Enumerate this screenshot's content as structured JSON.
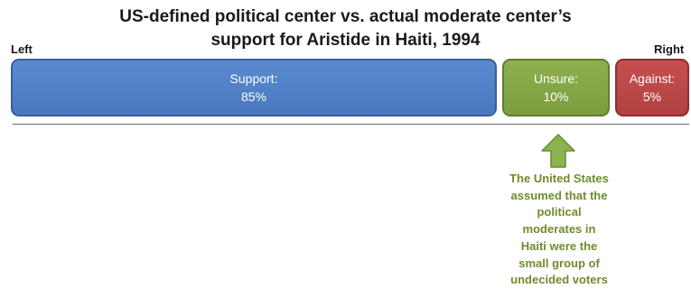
{
  "title": {
    "line1": "US-defined political center vs. actual moderate center’s",
    "line2": "support for Aristide in Haiti, 1994"
  },
  "axis": {
    "left": "Left",
    "right": "Right"
  },
  "segments": [
    {
      "label": "Support:",
      "value": "85%",
      "fraction": 0.85
    },
    {
      "label": "Unsure:",
      "value": "10%",
      "fraction": 0.1
    },
    {
      "label": "Against:",
      "value": "5%",
      "fraction": 0.05
    }
  ],
  "annotation": {
    "lines": [
      "The United States",
      "assumed that the",
      "political",
      "moderates in",
      "Haiti were the",
      "small group of",
      "undecided voters"
    ]
  },
  "colors": {
    "support": "#4a78bf",
    "unsure": "#7c9d3f",
    "against": "#b34141",
    "annotation": "#6f8c2d",
    "arrow": "#8db34f"
  }
}
